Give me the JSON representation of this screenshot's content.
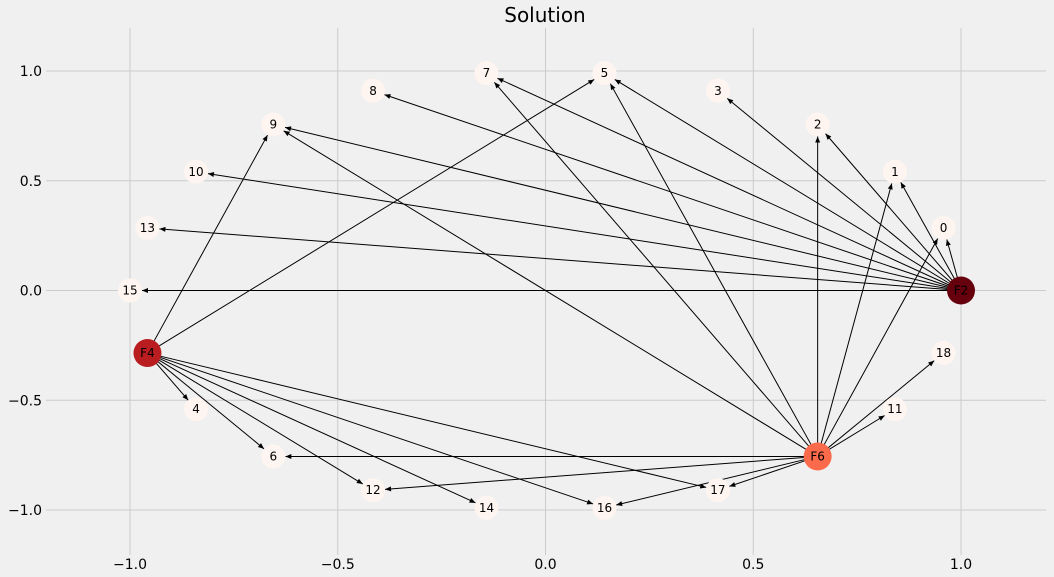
{
  "chart_data": {
    "type": "network",
    "title": "Solution",
    "xlim": [
      -1.2,
      1.2
    ],
    "ylim": [
      -1.2,
      1.2
    ],
    "xticks": [
      -1.0,
      -0.5,
      0.0,
      0.5,
      1.0
    ],
    "xtick_labels": [
      "−1.0",
      "−0.5",
      "0.0",
      "0.5",
      "1.0"
    ],
    "yticks": [
      1.0,
      0.5,
      0.0,
      -0.5,
      -1.0
    ],
    "ytick_labels": [
      "1.0",
      "0.5",
      "0.0",
      "−0.5",
      "−1.0"
    ],
    "grid": true,
    "nodes": [
      {
        "id": "F2",
        "label": "F2",
        "x": 1.0,
        "y": 0.0,
        "facility": true,
        "color": "#67000d"
      },
      {
        "id": "F4",
        "label": "F4",
        "x": -0.958,
        "y": -0.285,
        "facility": true,
        "color": "#b91d1f"
      },
      {
        "id": "F6",
        "label": "F6",
        "x": 0.655,
        "y": -0.756,
        "facility": true,
        "color": "#fb6a4a"
      },
      {
        "id": "0",
        "label": "0",
        "x": 0.958,
        "y": 0.285,
        "facility": false,
        "color": "#fff5f0"
      },
      {
        "id": "1",
        "label": "1",
        "x": 0.841,
        "y": 0.541,
        "facility": false,
        "color": "#fff5f0"
      },
      {
        "id": "2",
        "label": "2",
        "x": 0.655,
        "y": 0.756,
        "facility": false,
        "color": "#fff5f0"
      },
      {
        "id": "3",
        "label": "3",
        "x": 0.415,
        "y": 0.91,
        "facility": false,
        "color": "#fff5f0"
      },
      {
        "id": "5",
        "label": "5",
        "x": 0.142,
        "y": 0.99,
        "facility": false,
        "color": "#fff5f0"
      },
      {
        "id": "7",
        "label": "7",
        "x": -0.142,
        "y": 0.99,
        "facility": false,
        "color": "#fff5f0"
      },
      {
        "id": "8",
        "label": "8",
        "x": -0.415,
        "y": 0.91,
        "facility": false,
        "color": "#fff5f0"
      },
      {
        "id": "9",
        "label": "9",
        "x": -0.655,
        "y": 0.756,
        "facility": false,
        "color": "#fff5f0"
      },
      {
        "id": "10",
        "label": "10",
        "x": -0.841,
        "y": 0.541,
        "facility": false,
        "color": "#fff5f0"
      },
      {
        "id": "13",
        "label": "13",
        "x": -0.958,
        "y": 0.285,
        "facility": false,
        "color": "#fff5f0"
      },
      {
        "id": "15",
        "label": "15",
        "x": -1.0,
        "y": 0.0,
        "facility": false,
        "color": "#fff5f0"
      },
      {
        "id": "4",
        "label": "4",
        "x": -0.841,
        "y": -0.541,
        "facility": false,
        "color": "#fff5f0"
      },
      {
        "id": "6",
        "label": "6",
        "x": -0.655,
        "y": -0.756,
        "facility": false,
        "color": "#fff5f0"
      },
      {
        "id": "12",
        "label": "12",
        "x": -0.415,
        "y": -0.91,
        "facility": false,
        "color": "#fff5f0"
      },
      {
        "id": "14",
        "label": "14",
        "x": -0.142,
        "y": -0.99,
        "facility": false,
        "color": "#fff5f0"
      },
      {
        "id": "16",
        "label": "16",
        "x": 0.142,
        "y": -0.99,
        "facility": false,
        "color": "#fff5f0"
      },
      {
        "id": "17",
        "label": "17",
        "x": 0.415,
        "y": -0.91,
        "facility": false,
        "color": "#fff5f0"
      },
      {
        "id": "11",
        "label": "11",
        "x": 0.841,
        "y": -0.541,
        "facility": false,
        "color": "#fff5f0"
      },
      {
        "id": "18",
        "label": "18",
        "x": 0.958,
        "y": -0.285,
        "facility": false,
        "color": "#fff5f0"
      }
    ],
    "edges": [
      {
        "source": "F2",
        "target": "0"
      },
      {
        "source": "F2",
        "target": "1"
      },
      {
        "source": "F2",
        "target": "2"
      },
      {
        "source": "F2",
        "target": "3"
      },
      {
        "source": "F2",
        "target": "5"
      },
      {
        "source": "F2",
        "target": "7"
      },
      {
        "source": "F2",
        "target": "8"
      },
      {
        "source": "F2",
        "target": "9"
      },
      {
        "source": "F2",
        "target": "10"
      },
      {
        "source": "F2",
        "target": "13"
      },
      {
        "source": "F2",
        "target": "15"
      },
      {
        "source": "F4",
        "target": "9"
      },
      {
        "source": "F4",
        "target": "5"
      },
      {
        "source": "F4",
        "target": "4"
      },
      {
        "source": "F4",
        "target": "6"
      },
      {
        "source": "F4",
        "target": "12"
      },
      {
        "source": "F4",
        "target": "14"
      },
      {
        "source": "F4",
        "target": "16"
      },
      {
        "source": "F4",
        "target": "17"
      },
      {
        "source": "F6",
        "target": "9"
      },
      {
        "source": "F6",
        "target": "7"
      },
      {
        "source": "F6",
        "target": "5"
      },
      {
        "source": "F6",
        "target": "2"
      },
      {
        "source": "F6",
        "target": "1"
      },
      {
        "source": "F6",
        "target": "0"
      },
      {
        "source": "F6",
        "target": "18"
      },
      {
        "source": "F6",
        "target": "11"
      },
      {
        "source": "F6",
        "target": "17"
      },
      {
        "source": "F6",
        "target": "16"
      },
      {
        "source": "F6",
        "target": "6"
      },
      {
        "source": "F6",
        "target": "12"
      }
    ]
  }
}
